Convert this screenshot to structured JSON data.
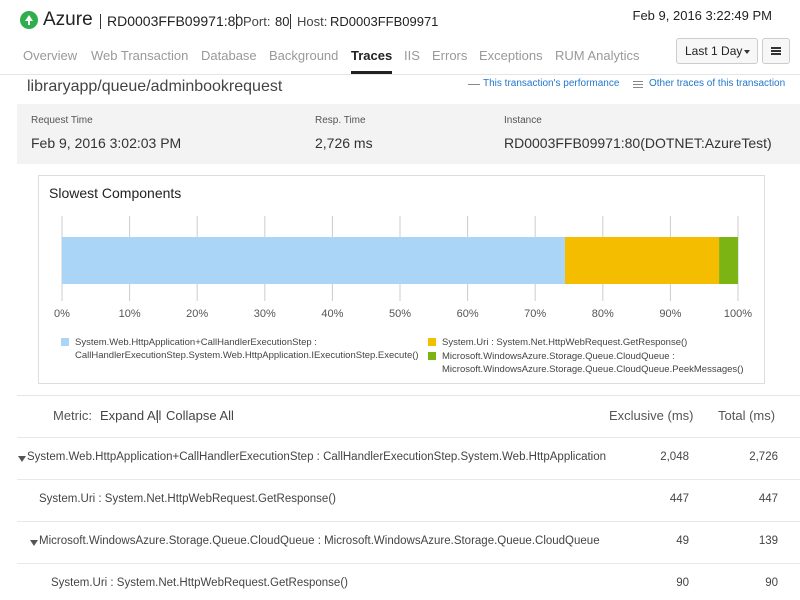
{
  "header": {
    "app": "Azure",
    "monitor": "RD0003FFB09971:80",
    "port_label": "Port:",
    "port": "80",
    "host_label": "Host:",
    "host": "RD0003FFB09971",
    "datetime": "Feb 9, 2016 3:22:49 PM"
  },
  "tabs": [
    "Overview",
    "Web Transaction",
    "Database",
    "Background",
    "Traces",
    "IIS",
    "Errors",
    "Exceptions",
    "RUM Analytics"
  ],
  "active_tab": 4,
  "time_range": "Last 1 Day",
  "page": {
    "title": "libraryapp/queue/adminbookrequest",
    "links": [
      "This transaction's performance",
      "Other traces of this transaction"
    ]
  },
  "details": [
    {
      "label": "Request Time",
      "value": "Feb 9, 2016 3:02:03 PM"
    },
    {
      "label": "Resp. Time",
      "value": "2,726 ms"
    },
    {
      "label": "Instance",
      "value": "RD0003FFB09971:80(DOTNET:AzureTest)"
    }
  ],
  "chart_data": {
    "type": "bar",
    "orientation": "horizontal",
    "stacked": true,
    "title": "Slowest Components",
    "categories": [
      null
    ],
    "series": [
      {
        "name": "System.Web.HttpApplication+CallHandlerExecutionStep : CallHandlerExecutionStep.System.Web.HttpApplication.IExecutionStep.Execute()",
        "color": "#aad5f6",
        "values": [
          74.4
        ]
      },
      {
        "name": "System.Uri : System.Net.HttpWebRequest.GetResponse()",
        "color": "#f4bd00",
        "values": [
          22.8
        ]
      },
      {
        "name": "Microsoft.WindowsAzure.Storage.Queue.CloudQueue : Microsoft.WindowsAzure.Storage.Queue.CloudQueue.PeekMessages()",
        "color": "#7cb414",
        "values": [
          2.8
        ]
      }
    ],
    "xlim": [
      0,
      100
    ],
    "xticks": [
      {
        "value": 0,
        "label": "0%"
      },
      {
        "value": 10,
        "label": "10%"
      },
      {
        "value": 20,
        "label": "20%"
      },
      {
        "value": 30,
        "label": "30%"
      },
      {
        "value": 40,
        "label": "40%"
      },
      {
        "value": 50,
        "label": "50%"
      },
      {
        "value": 60,
        "label": "60%"
      },
      {
        "value": 70,
        "label": "70%"
      },
      {
        "value": 80,
        "label": "80%"
      },
      {
        "value": 90,
        "label": "90%"
      },
      {
        "value": 100,
        "label": "100%"
      }
    ],
    "grid": true
  },
  "table": {
    "metric_label": "Metric:",
    "expand": "Expand All",
    "collapse": "Collapse All",
    "columns": [
      "Exclusive (ms)",
      "Total (ms)"
    ],
    "rows": [
      {
        "name": "System.Web.HttpApplication+CallHandlerExecutionStep : CallHandlerExecutionStep.System.Web.HttpApplication",
        "exclusive": "2,048",
        "total": "2,726",
        "level": 0,
        "toggle": true
      },
      {
        "name": "System.Uri : System.Net.HttpWebRequest.GetResponse()",
        "exclusive": "447",
        "total": "447",
        "level": 1,
        "toggle": false
      },
      {
        "name": "Microsoft.WindowsAzure.Storage.Queue.CloudQueue : Microsoft.WindowsAzure.Storage.Queue.CloudQueue",
        "exclusive": "49",
        "total": "139",
        "level": 1,
        "toggle": true
      },
      {
        "name": "System.Uri : System.Net.HttpWebRequest.GetResponse()",
        "exclusive": "90",
        "total": "90",
        "level": 2,
        "toggle": false
      }
    ]
  }
}
